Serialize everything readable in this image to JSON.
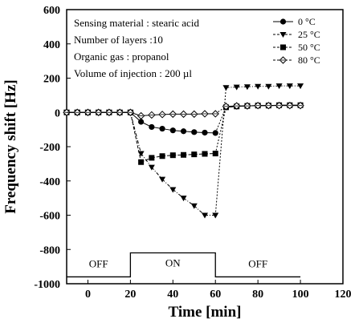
{
  "chart_data": {
    "type": "line",
    "xlabel": "Time [min]",
    "ylabel": "Frequency shift [Hz]",
    "xlim": [
      -10,
      120
    ],
    "ylim": [
      -1000,
      600
    ],
    "xticks": [
      0,
      20,
      40,
      60,
      80,
      100,
      120
    ],
    "yticks": [
      600,
      400,
      200,
      0,
      -200,
      -400,
      -600,
      -800,
      -1000
    ],
    "grid": false,
    "legend_position": "top-right",
    "annotations": [
      "Sensing material : stearic acid",
      "Number of layers :10",
      "Organic gas : propanol",
      "Volume of injection : 200  µl"
    ],
    "phases": [
      {
        "label": "OFF",
        "start": -10,
        "end": 20,
        "state": "off"
      },
      {
        "label": "ON",
        "start": 20,
        "end": 60,
        "state": "on"
      },
      {
        "label": "OFF",
        "start": 60,
        "end": 100,
        "state": "off"
      }
    ],
    "series": [
      {
        "name": "0 °C",
        "marker": "circle",
        "x": [
          -10,
          -5,
          0,
          5,
          10,
          15,
          20,
          25,
          30,
          35,
          40,
          45,
          50,
          55,
          60,
          65,
          70,
          75,
          80,
          85,
          90,
          95,
          100
        ],
        "y": [
          0,
          0,
          0,
          0,
          0,
          0,
          0,
          -55,
          -85,
          -95,
          -105,
          -110,
          -115,
          -118,
          -120,
          30,
          35,
          38,
          40,
          40,
          42,
          42,
          42
        ]
      },
      {
        "name": "25 °C",
        "marker": "triangle-down",
        "x": [
          -10,
          -5,
          0,
          5,
          10,
          15,
          20,
          25,
          30,
          35,
          40,
          45,
          50,
          55,
          60,
          65,
          70,
          75,
          80,
          85,
          90,
          95,
          100
        ],
        "y": [
          0,
          0,
          0,
          0,
          0,
          0,
          0,
          -240,
          -320,
          -390,
          -450,
          -500,
          -545,
          -600,
          -600,
          145,
          148,
          150,
          152,
          152,
          155,
          155,
          155
        ]
      },
      {
        "name": "50 °C",
        "marker": "square",
        "x": [
          -10,
          -5,
          0,
          5,
          10,
          15,
          20,
          25,
          30,
          35,
          40,
          45,
          50,
          55,
          60,
          65,
          70,
          75,
          80,
          85,
          90,
          95,
          100
        ],
        "y": [
          0,
          0,
          0,
          0,
          0,
          0,
          0,
          -290,
          -265,
          -255,
          -250,
          -248,
          -245,
          -242,
          -240,
          30,
          35,
          38,
          40,
          40,
          42,
          42,
          42
        ]
      },
      {
        "name": "80 °C",
        "marker": "diamond-open",
        "x": [
          -10,
          -5,
          0,
          5,
          10,
          15,
          20,
          25,
          30,
          35,
          40,
          45,
          50,
          55,
          60,
          65,
          70,
          75,
          80,
          85,
          90,
          95,
          100
        ],
        "y": [
          0,
          0,
          0,
          0,
          0,
          0,
          0,
          -20,
          -15,
          -12,
          -10,
          -10,
          -10,
          -8,
          -8,
          35,
          38,
          38,
          40,
          40,
          40,
          40,
          40
        ]
      }
    ]
  }
}
